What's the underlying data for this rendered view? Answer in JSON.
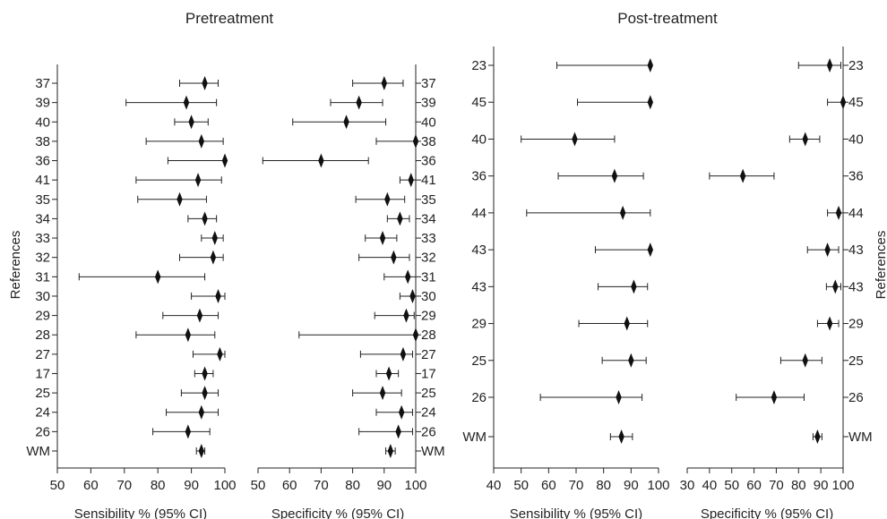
{
  "chart_data": [
    {
      "type": "forest",
      "title": "Pretreatment",
      "ylabel": "References",
      "panels": [
        {
          "xlabel": "Sensibility % (95% CI)",
          "xticks": [
            50,
            60,
            70,
            80,
            90,
            100
          ],
          "xlim": [
            50,
            100
          ],
          "rows": [
            {
              "label": "37",
              "est": 94,
              "lo": 86.5,
              "hi": 98
            },
            {
              "label": "39",
              "est": 88.5,
              "lo": 70.5,
              "hi": 97.5
            },
            {
              "label": "40",
              "est": 90,
              "lo": 85,
              "hi": 95
            },
            {
              "label": "38",
              "est": 93,
              "lo": 76.5,
              "hi": 99.5
            },
            {
              "label": "36",
              "est": 100,
              "lo": 83,
              "hi": 100
            },
            {
              "label": "41",
              "est": 92,
              "lo": 73.5,
              "hi": 99
            },
            {
              "label": "35",
              "est": 86.5,
              "lo": 74,
              "hi": 94.5
            },
            {
              "label": "34",
              "est": 94,
              "lo": 89,
              "hi": 97.5
            },
            {
              "label": "33",
              "est": 97,
              "lo": 93,
              "hi": 99.5
            },
            {
              "label": "32",
              "est": 96.5,
              "lo": 86.5,
              "hi": 99.5
            },
            {
              "label": "31",
              "est": 80,
              "lo": 56.5,
              "hi": 94
            },
            {
              "label": "30",
              "est": 98,
              "lo": 90,
              "hi": 100
            },
            {
              "label": "29",
              "est": 92.5,
              "lo": 81.5,
              "hi": 98
            },
            {
              "label": "28",
              "est": 89,
              "lo": 73.5,
              "hi": 97
            },
            {
              "label": "27",
              "est": 98.5,
              "lo": 90.5,
              "hi": 100
            },
            {
              "label": "17",
              "est": 94,
              "lo": 91,
              "hi": 96.5
            },
            {
              "label": "25",
              "est": 94,
              "lo": 87,
              "hi": 98
            },
            {
              "label": "24",
              "est": 93,
              "lo": 82.5,
              "hi": 98
            },
            {
              "label": "26",
              "est": 89,
              "lo": 78.5,
              "hi": 95.5
            },
            {
              "label": "WM",
              "est": 93,
              "lo": 91.5,
              "hi": 94
            }
          ]
        },
        {
          "xlabel": "Specificity % (95% CI)",
          "xticks": [
            50,
            60,
            70,
            80,
            90,
            100
          ],
          "xlim": [
            50,
            100
          ],
          "rows": [
            {
              "label": "37",
              "est": 90,
              "lo": 80,
              "hi": 96
            },
            {
              "label": "39",
              "est": 82,
              "lo": 73,
              "hi": 89.5
            },
            {
              "label": "40",
              "est": 78,
              "lo": 61,
              "hi": 90.5
            },
            {
              "label": "38",
              "est": 100,
              "lo": 87.5,
              "hi": 100
            },
            {
              "label": "36",
              "est": 70,
              "lo": 51.5,
              "hi": 85
            },
            {
              "label": "41",
              "est": 98.5,
              "lo": 95,
              "hi": 100
            },
            {
              "label": "35",
              "est": 91,
              "lo": 81,
              "hi": 96.5
            },
            {
              "label": "34",
              "est": 95,
              "lo": 91,
              "hi": 98
            },
            {
              "label": "33",
              "est": 89.5,
              "lo": 84,
              "hi": 94
            },
            {
              "label": "32",
              "est": 93,
              "lo": 82,
              "hi": 98
            },
            {
              "label": "31",
              "est": 97.5,
              "lo": 90,
              "hi": 100
            },
            {
              "label": "30",
              "est": 99,
              "lo": 95,
              "hi": 100
            },
            {
              "label": "29",
              "est": 97,
              "lo": 87,
              "hi": 99.5
            },
            {
              "label": "28",
              "est": 100,
              "lo": 63,
              "hi": 100
            },
            {
              "label": "27",
              "est": 96,
              "lo": 82.5,
              "hi": 99
            },
            {
              "label": "17",
              "est": 91.5,
              "lo": 87.5,
              "hi": 94.5
            },
            {
              "label": "25",
              "est": 89.5,
              "lo": 80,
              "hi": 95.5
            },
            {
              "label": "24",
              "est": 95.5,
              "lo": 87.5,
              "hi": 99
            },
            {
              "label": "26",
              "est": 94.5,
              "lo": 82,
              "hi": 99
            },
            {
              "label": "WM",
              "est": 92,
              "lo": 90.5,
              "hi": 93.5
            }
          ]
        }
      ]
    },
    {
      "type": "forest",
      "title": "Post-treatment",
      "ylabel": "References",
      "panels": [
        {
          "xlabel": "Sensibility % (95% CI)",
          "xticks": [
            40,
            50,
            60,
            70,
            80,
            90,
            100
          ],
          "xlim": [
            40,
            100
          ],
          "rows": [
            {
              "label": "23",
              "est": 97,
              "lo": 63,
              "hi": 97
            },
            {
              "label": "45",
              "est": 97,
              "lo": 70.5,
              "hi": 97
            },
            {
              "label": "40",
              "est": 69.5,
              "lo": 50,
              "hi": 84
            },
            {
              "label": "36",
              "est": 84,
              "lo": 63.5,
              "hi": 94.5
            },
            {
              "label": "44",
              "est": 87,
              "lo": 52,
              "hi": 97
            },
            {
              "label": "43",
              "est": 97,
              "lo": 77,
              "hi": 97
            },
            {
              "label": "43",
              "est": 91,
              "lo": 78,
              "hi": 96
            },
            {
              "label": "29",
              "est": 88.5,
              "lo": 71,
              "hi": 96
            },
            {
              "label": "25",
              "est": 90,
              "lo": 79.5,
              "hi": 95.5
            },
            {
              "label": "26",
              "est": 85.5,
              "lo": 57,
              "hi": 94
            },
            {
              "label": "WM",
              "est": 86.5,
              "lo": 82.5,
              "hi": 90.5
            }
          ]
        },
        {
          "xlabel": "Specificity % (95% CI)",
          "xticks": [
            30,
            40,
            50,
            60,
            70,
            80,
            90,
            100
          ],
          "xlim": [
            30,
            100
          ],
          "rows": [
            {
              "label": "23",
              "est": 94,
              "lo": 80,
              "hi": 99
            },
            {
              "label": "45",
              "est": 100,
              "lo": 93,
              "hi": 100
            },
            {
              "label": "40",
              "est": 83,
              "lo": 76,
              "hi": 89.5
            },
            {
              "label": "36",
              "est": 55,
              "lo": 40,
              "hi": 69
            },
            {
              "label": "44",
              "est": 98,
              "lo": 93,
              "hi": 100
            },
            {
              "label": "43",
              "est": 93,
              "lo": 84,
              "hi": 98
            },
            {
              "label": "43",
              "est": 96.5,
              "lo": 92.5,
              "hi": 99
            },
            {
              "label": "29",
              "est": 94,
              "lo": 88.5,
              "hi": 98
            },
            {
              "label": "25",
              "est": 83,
              "lo": 72,
              "hi": 90.5
            },
            {
              "label": "26",
              "est": 69,
              "lo": 52,
              "hi": 82.5
            },
            {
              "label": "WM",
              "est": 88.5,
              "lo": 86.5,
              "hi": 90.5
            }
          ]
        }
      ]
    }
  ]
}
